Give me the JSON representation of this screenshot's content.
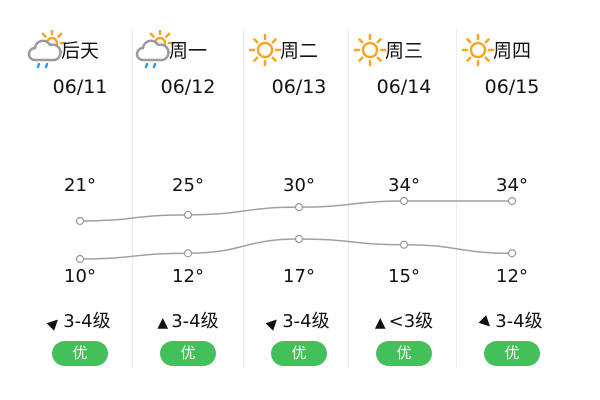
{
  "days": [
    {
      "name": "后天",
      "date": "06/11",
      "icon": "cloud-sun-rain",
      "high": "21°",
      "low": "10°",
      "high_value": 21,
      "low_value": 10,
      "wind_dir": "northeast",
      "wind_rotate": 45,
      "wind": "3-4级",
      "aqi": "优"
    },
    {
      "name": "周一",
      "date": "06/12",
      "icon": "cloud-sun-rain",
      "high": "25°",
      "low": "12°",
      "high_value": 25,
      "low_value": 12,
      "wind_dir": "north",
      "wind_rotate": 0,
      "wind": "3-4级",
      "aqi": "优"
    },
    {
      "name": "周二",
      "date": "06/13",
      "icon": "sun",
      "high": "30°",
      "low": "17°",
      "high_value": 30,
      "low_value": 17,
      "wind_dir": "northeast",
      "wind_rotate": 45,
      "wind": "3-4级",
      "aqi": "优"
    },
    {
      "name": "周三",
      "date": "06/14",
      "icon": "sun",
      "high": "34°",
      "low": "15°",
      "high_value": 34,
      "low_value": 15,
      "wind_dir": "north",
      "wind_rotate": 0,
      "wind": "<3级",
      "aqi": "优"
    },
    {
      "name": "周四",
      "date": "06/15",
      "icon": "sun",
      "high": "34°",
      "low": "12°",
      "high_value": 34,
      "low_value": 12,
      "wind_dir": "southeast",
      "wind_rotate": 135,
      "wind": "3-4级",
      "aqi": "优"
    }
  ],
  "colors": {
    "aqi_good": "#44c05a",
    "sun": "#f5a623",
    "cloud": "#9a9aa2",
    "rain": "#2a9df4",
    "line": "#a0a0a0"
  }
}
